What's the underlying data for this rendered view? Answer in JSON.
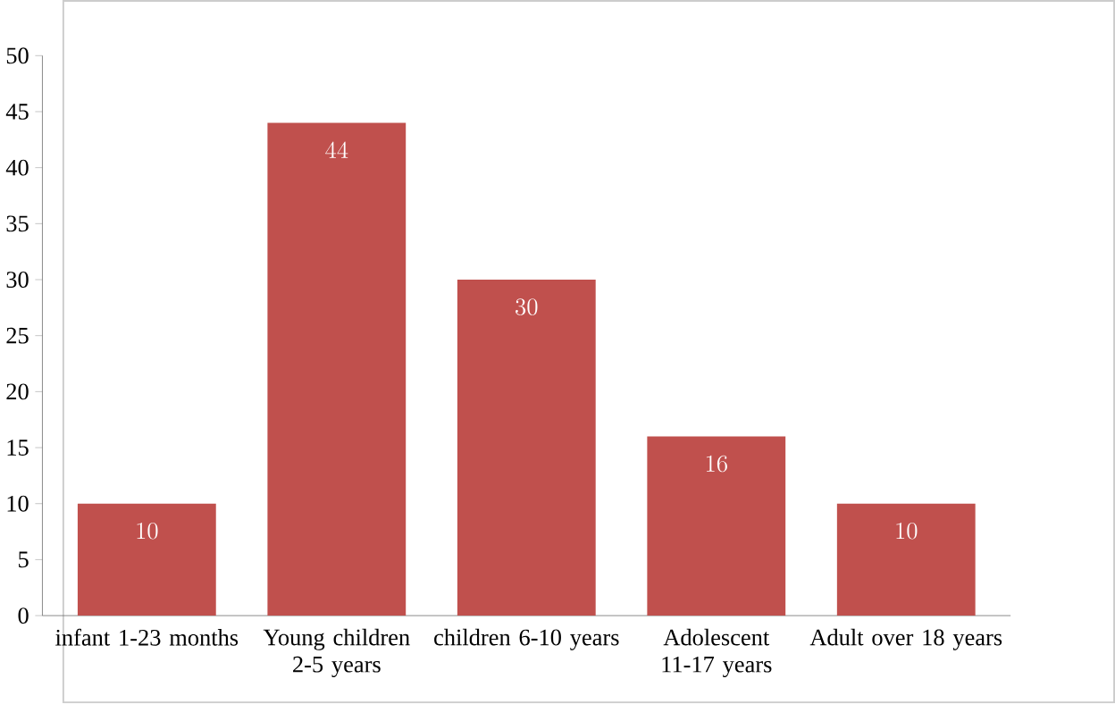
{
  "chart_data": {
    "type": "bar",
    "categories": [
      "infant 1-23 months",
      "Young children 2-5 years",
      "children 6-10 years",
      "Adolescent 11-17 years",
      "Adult over 18 years"
    ],
    "values": [
      10,
      44,
      30,
      16,
      10
    ],
    "color": "#c0504d",
    "ylim": [
      0,
      50
    ],
    "yticks": [
      0,
      5,
      10,
      15,
      20,
      25,
      30,
      35,
      40,
      45,
      50
    ],
    "data_labels": true
  }
}
